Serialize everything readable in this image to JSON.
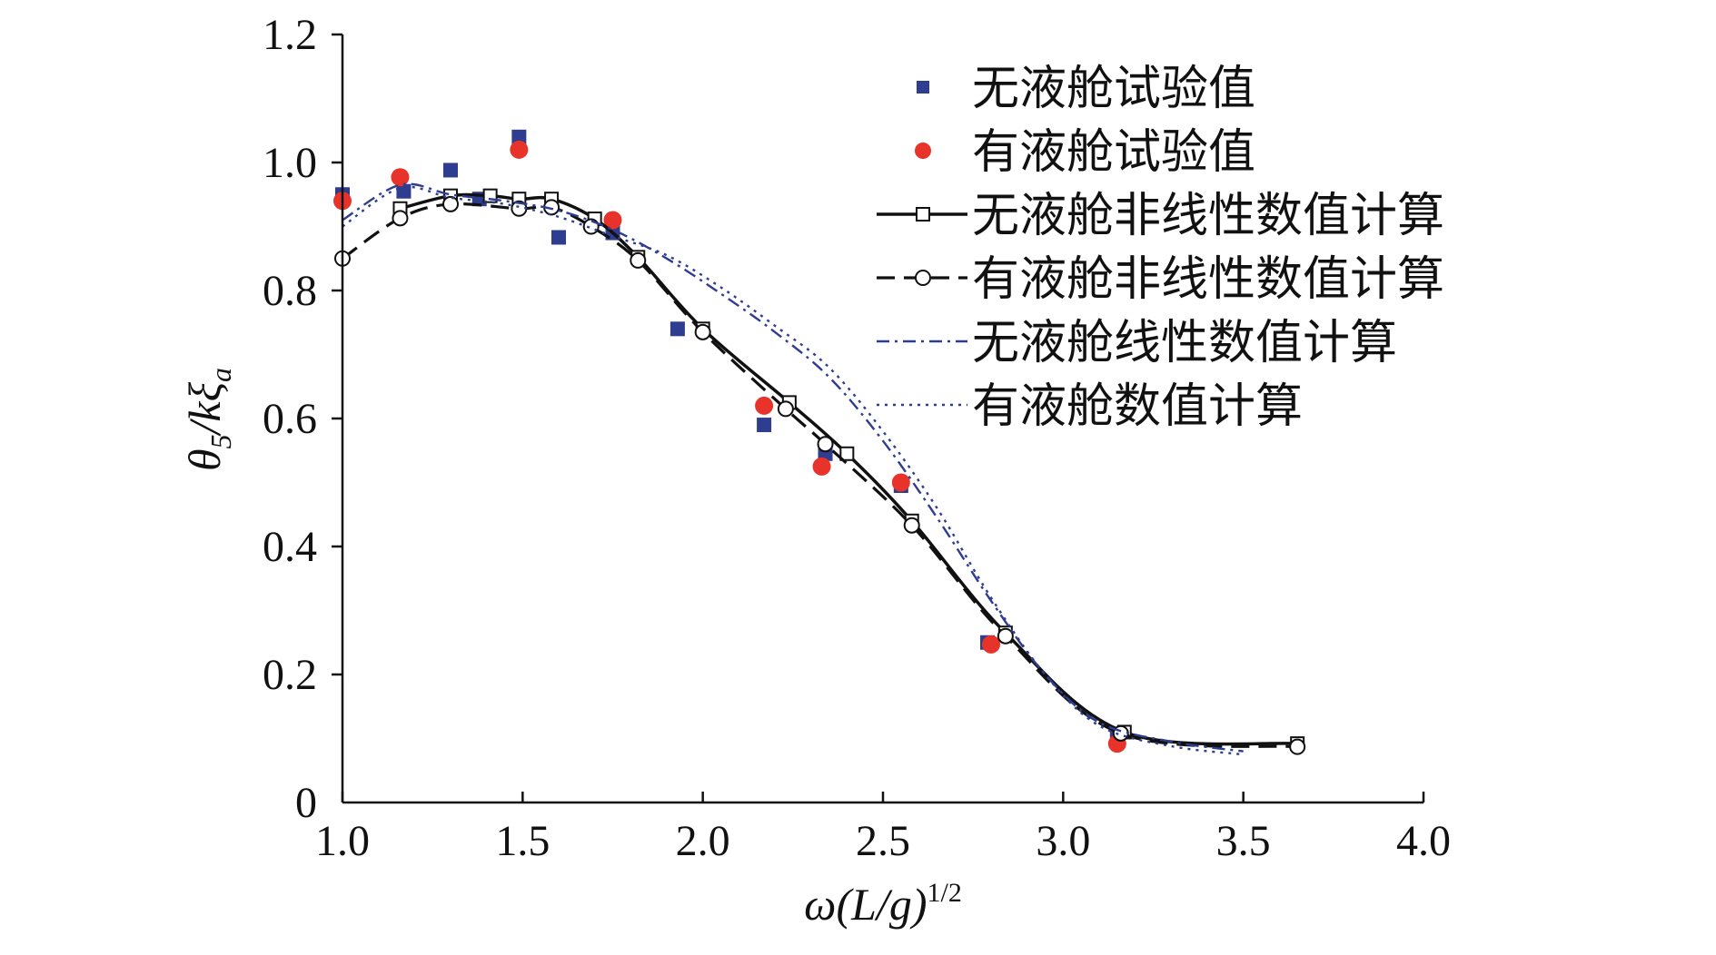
{
  "chart_data": {
    "type": "line",
    "xlabel": {
      "base": "ω(L/g)",
      "sup": "1/2"
    },
    "ylabel": {
      "theta": "θ",
      "sub1": "5",
      "mid": "/kξ",
      "sub2": "a"
    },
    "xlim": [
      1.0,
      4.0
    ],
    "ylim": [
      0,
      1.2
    ],
    "xticks": [
      1.0,
      1.5,
      2.0,
      2.5,
      3.0,
      3.5,
      4.0
    ],
    "xtick_labels": [
      "1.0",
      "1.5",
      "2.0",
      "2.5",
      "3.0",
      "3.5",
      "4.0"
    ],
    "yticks": [
      0,
      0.2,
      0.4,
      0.6,
      0.8,
      1.0,
      1.2
    ],
    "ytick_labels": [
      "0",
      "0.2",
      "0.4",
      "0.6",
      "0.8",
      "1.0",
      "1.2"
    ],
    "legend_position": "top-right",
    "series": [
      {
        "name": "无液舱试验值",
        "kind": "scatter",
        "marker": "square",
        "color": "#2e3d8f",
        "x": [
          1.0,
          1.17,
          1.3,
          1.38,
          1.49,
          1.6,
          1.75,
          1.93,
          2.17,
          2.34,
          2.55,
          2.79,
          3.15
        ],
        "y": [
          0.95,
          0.955,
          0.988,
          0.943,
          1.04,
          0.883,
          0.89,
          0.74,
          0.59,
          0.545,
          0.495,
          0.25,
          0.107
        ]
      },
      {
        "name": "有液舱试验值",
        "kind": "scatter",
        "marker": "circle",
        "color": "#e8332a",
        "x": [
          1.0,
          1.16,
          1.49,
          1.75,
          2.17,
          2.33,
          2.55,
          2.8,
          3.15
        ],
        "y": [
          0.94,
          0.977,
          1.02,
          0.91,
          0.62,
          0.525,
          0.5,
          0.247,
          0.092
        ]
      },
      {
        "name": "无液舱非线性数值计算",
        "kind": "line",
        "style": "solid",
        "marker": "open-square",
        "color": "#111111",
        "x": [
          1.16,
          1.3,
          1.41,
          1.49,
          1.58,
          1.7,
          1.82,
          2.0,
          2.24,
          2.4,
          2.58,
          2.84,
          3.17,
          3.65
        ],
        "y": [
          0.928,
          0.948,
          0.948,
          0.943,
          0.943,
          0.912,
          0.852,
          0.74,
          0.625,
          0.545,
          0.44,
          0.265,
          0.11,
          0.092
        ]
      },
      {
        "name": "有液舱非线性数值计算",
        "kind": "line",
        "style": "dashed",
        "marker": "open-circle",
        "color": "#111111",
        "x": [
          1.0,
          1.16,
          1.3,
          1.49,
          1.58,
          1.69,
          1.82,
          2.0,
          2.23,
          2.34,
          2.58,
          2.84,
          3.16,
          3.65
        ],
        "y": [
          0.85,
          0.913,
          0.935,
          0.928,
          0.93,
          0.9,
          0.847,
          0.735,
          0.615,
          0.56,
          0.433,
          0.26,
          0.108,
          0.087
        ]
      },
      {
        "name": "无液舱线性数值计算",
        "kind": "line",
        "style": "dashdot",
        "marker": "none",
        "color": "#2e3d8f",
        "x": [
          1.0,
          1.16,
          1.3,
          1.45,
          1.6,
          1.75,
          1.9,
          2.05,
          2.2,
          2.35,
          2.5,
          2.65,
          2.8,
          2.95,
          3.1,
          3.3,
          3.5
        ],
        "y": [
          0.91,
          0.965,
          0.95,
          0.94,
          0.925,
          0.895,
          0.85,
          0.795,
          0.735,
          0.665,
          0.565,
          0.445,
          0.315,
          0.2,
          0.125,
          0.095,
          0.08
        ]
      },
      {
        "name": "有液舱数值计算",
        "kind": "line",
        "style": "dotted",
        "marker": "none",
        "color": "#2e3d8f",
        "x": [
          1.0,
          1.16,
          1.3,
          1.45,
          1.6,
          1.75,
          1.9,
          2.05,
          2.2,
          2.35,
          2.5,
          2.65,
          2.8,
          2.95,
          3.1,
          3.3,
          3.5
        ],
        "y": [
          0.9,
          0.96,
          0.945,
          0.935,
          0.915,
          0.885,
          0.855,
          0.805,
          0.745,
          0.68,
          0.58,
          0.46,
          0.32,
          0.2,
          0.12,
          0.088,
          0.075
        ]
      }
    ]
  }
}
